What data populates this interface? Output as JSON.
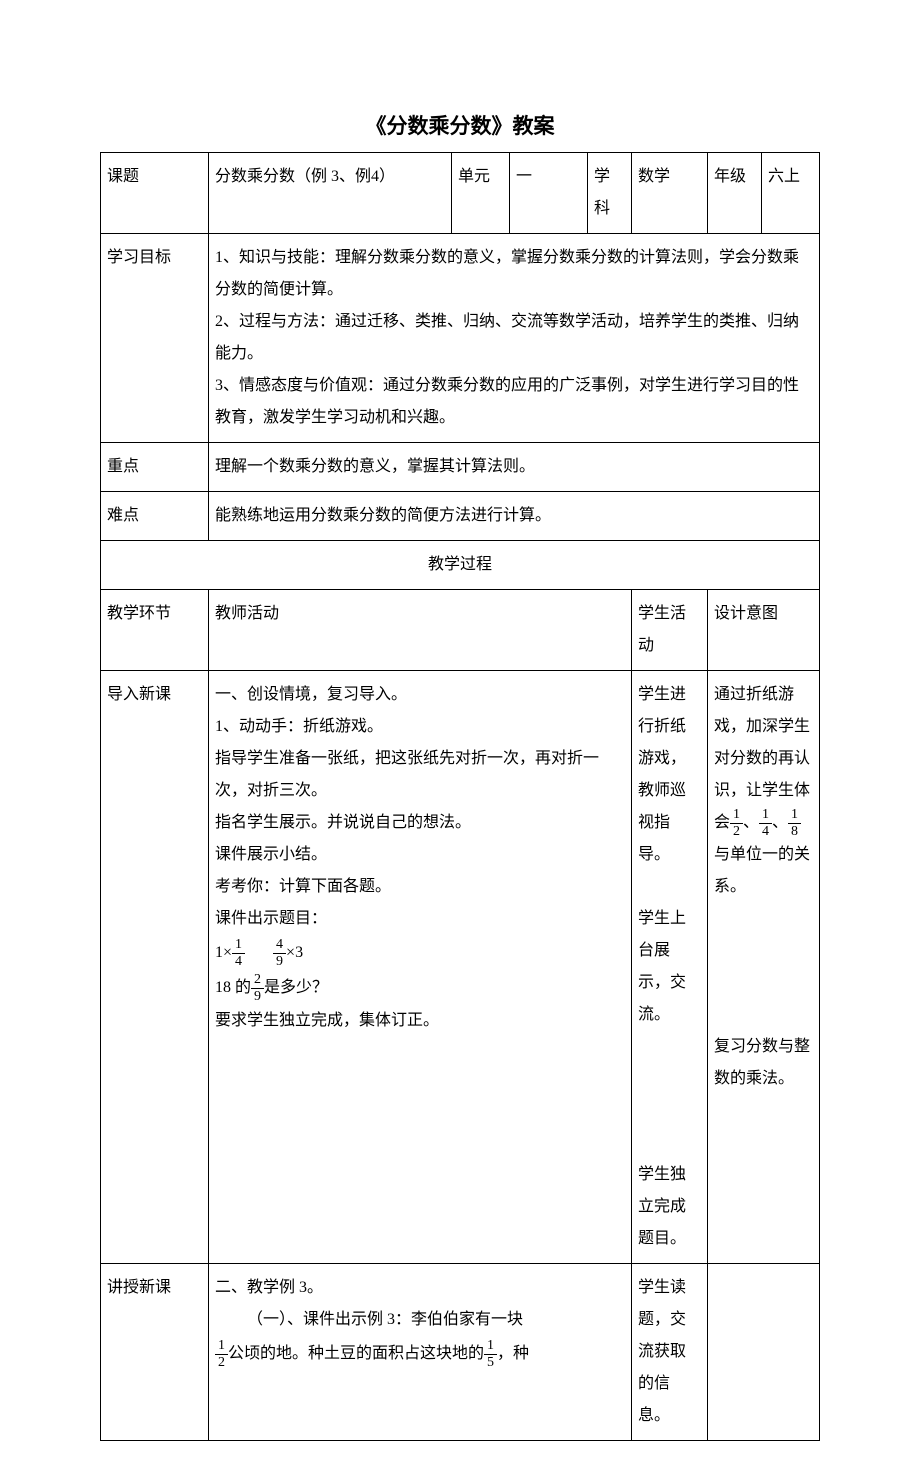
{
  "title": "《分数乘分数》教案",
  "row1": {
    "topic_label": "课题",
    "topic_value": "分数乘分数（例 3、例4）",
    "unit_label": "单元",
    "unit_value": "一",
    "subject_label": "学科",
    "subject_value": "数学",
    "grade_label": "年级",
    "grade_value": "六上"
  },
  "obj": {
    "label": "学习目标",
    "item1": "1、知识与技能：理解分数乘分数的意义，掌握分数乘分数的计算法则，学会分数乘分数的简便计算。",
    "item2": "2、过程与方法：通过迁移、类推、归纳、交流等数学活动，培养学生的类推、归纳能力。",
    "item3": "3、情感态度与价值观：通过分数乘分数的应用的广泛事例，对学生进行学习目的性教育，激发学生学习动机和兴趣。"
  },
  "keypoint": {
    "label": "重点",
    "value": "理解一个数乘分数的意义，掌握其计算法则。"
  },
  "diffpoint": {
    "label": "难点",
    "value": "能熟练地运用分数乘分数的简便方法进行计算。"
  },
  "process_header": "教学过程",
  "cols": {
    "phase": "教学环节",
    "teacher": "教师活动",
    "student": "学生活动",
    "intent": "设计意图"
  },
  "intro": {
    "phase": "导入新课",
    "teacher": {
      "l1": "一、创设情境，复习导入。",
      "l2": "1、动动手：折纸游戏。",
      "l3": "指导学生准备一张纸，把这张纸先对折一次，再对折一次，对折三次。",
      "l4": "指名学生展示。并说说自己的想法。",
      "l5": "课件展示小结。",
      "l6": "考考你：计算下面各题。",
      "l7": "课件出示题目：",
      "expr1_left": "1×",
      "expr1_f": {
        "n": "1",
        "d": "4"
      },
      "expr2_f": {
        "n": "4",
        "d": "9"
      },
      "expr2_right": "×3",
      "expr3_left": "18 的",
      "expr3_f": {
        "n": "2",
        "d": "9"
      },
      "expr3_right": "是多少？",
      "l8": "要求学生独立完成，集体订正。"
    },
    "student": {
      "s1": "学生进行折纸游戏，教师巡视指导。",
      "s2": "学生上台展示，交流。",
      "s3": "学生独立完成题目。"
    },
    "intent": {
      "p1a": "通过折纸游戏，加深学生对分数的再认识，让学生体会",
      "f1": {
        "n": "1",
        "d": "2"
      },
      "p1sep": "、",
      "f2": {
        "n": "1",
        "d": "4"
      },
      "p1sep2": "、",
      "f3": {
        "n": "1",
        "d": "8"
      },
      "p1b": "与单位一的关系。",
      "p2": "复习分数与整数的乘法。"
    }
  },
  "lecture": {
    "phase": "讲授新课",
    "teacher": {
      "l1": "二、教学例 3。",
      "l2a": "（一）、课件出示例 3：李伯伯家有一块",
      "f1": {
        "n": "1",
        "d": "2"
      },
      "l2b": "公顷的地。种土豆的面积占这块地的",
      "f2": {
        "n": "1",
        "d": "5"
      },
      "l2c": "，种"
    },
    "student": {
      "s1": "学生读题，交流获取的信息。"
    }
  }
}
